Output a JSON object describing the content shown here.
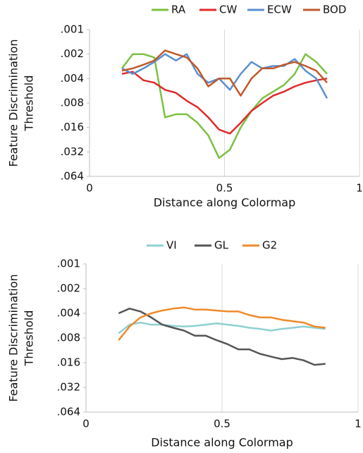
{
  "chart_data": [
    {
      "type": "line",
      "log_scale": true,
      "y_inverted": true,
      "grid": "x",
      "ylabel": [
        "Feature Discrimination",
        "Threshold"
      ],
      "xlabel": "Distance along Colormap",
      "xlim": [
        0,
        1
      ],
      "xticks": [
        0,
        0.5,
        1
      ],
      "ylim": [
        0.001,
        0.064
      ],
      "yticks": [
        {
          "value": 0.001,
          "label": ".001"
        },
        {
          "value": 0.002,
          "label": ".002"
        },
        {
          "value": 0.004,
          "label": ".004"
        },
        {
          "value": 0.008,
          "label": ".008"
        },
        {
          "value": 0.016,
          "label": ".016"
        },
        {
          "value": 0.032,
          "label": ".032"
        },
        {
          "value": 0.064,
          "label": ".064"
        }
      ],
      "x": [
        0.12,
        0.16,
        0.2,
        0.24,
        0.28,
        0.32,
        0.36,
        0.4,
        0.44,
        0.48,
        0.52,
        0.56,
        0.6,
        0.64,
        0.68,
        0.72,
        0.76,
        0.8,
        0.84,
        0.88
      ],
      "series": [
        {
          "name": "RA",
          "color": "#7cc142",
          "values": [
            0.003,
            0.002,
            0.002,
            0.0022,
            0.012,
            0.011,
            0.011,
            0.014,
            0.02,
            0.038,
            0.03,
            0.016,
            0.01,
            0.007,
            0.0058,
            0.0048,
            0.0035,
            0.002,
            0.0025,
            0.0035
          ]
        },
        {
          "name": "CW",
          "color": "#e02a2a",
          "values": [
            0.0035,
            0.0033,
            0.0042,
            0.0045,
            0.0055,
            0.006,
            0.0075,
            0.009,
            0.012,
            0.017,
            0.019,
            0.014,
            0.01,
            0.008,
            0.0065,
            0.0058,
            0.005,
            0.0045,
            0.0042,
            0.004
          ]
        },
        {
          "name": "ECW",
          "color": "#5b8fcf",
          "values": [
            0.003,
            0.0035,
            0.003,
            0.0025,
            0.002,
            0.0024,
            0.002,
            0.0035,
            0.0045,
            0.004,
            0.0055,
            0.0035,
            0.0025,
            0.003,
            0.0028,
            0.0028,
            0.0023,
            0.0032,
            0.004,
            0.007
          ]
        },
        {
          "name": "BOD",
          "color": "#c0592b",
          "values": [
            0.0032,
            0.003,
            0.0027,
            0.0024,
            0.0018,
            0.002,
            0.0022,
            0.003,
            0.005,
            0.004,
            0.004,
            0.0065,
            0.004,
            0.003,
            0.003,
            0.0027,
            0.0025,
            0.0028,
            0.0032,
            0.0045
          ]
        }
      ]
    },
    {
      "type": "line",
      "log_scale": true,
      "y_inverted": true,
      "grid": "x",
      "ylabel": [
        "Feature Discrimination",
        "Threshold"
      ],
      "xlabel": "Distance along Colormap",
      "xlim": [
        0,
        1
      ],
      "xticks": [
        0,
        0.5,
        1
      ],
      "ylim": [
        0.001,
        0.064
      ],
      "yticks": [
        {
          "value": 0.001,
          "label": ".001"
        },
        {
          "value": 0.002,
          "label": ".002"
        },
        {
          "value": 0.004,
          "label": ".004"
        },
        {
          "value": 0.008,
          "label": ".008"
        },
        {
          "value": 0.016,
          "label": ".016"
        },
        {
          "value": 0.032,
          "label": ".032"
        },
        {
          "value": 0.064,
          "label": ".064"
        }
      ],
      "x": [
        0.12,
        0.16,
        0.2,
        0.24,
        0.28,
        0.32,
        0.36,
        0.4,
        0.44,
        0.48,
        0.52,
        0.56,
        0.6,
        0.64,
        0.68,
        0.72,
        0.76,
        0.8,
        0.84,
        0.88
      ],
      "series": [
        {
          "name": "VI",
          "color": "#8fd0d0",
          "values": [
            0.007,
            0.0055,
            0.0052,
            0.0055,
            0.0055,
            0.0057,
            0.0058,
            0.0057,
            0.0055,
            0.0053,
            0.0055,
            0.0057,
            0.006,
            0.0062,
            0.0065,
            0.0062,
            0.006,
            0.0058,
            0.006,
            0.0062
          ]
        },
        {
          "name": "GL",
          "color": "#555555",
          "values": [
            0.004,
            0.0035,
            0.0038,
            0.0045,
            0.0055,
            0.006,
            0.0065,
            0.0075,
            0.0075,
            0.0085,
            0.0095,
            0.011,
            0.011,
            0.0125,
            0.0135,
            0.0145,
            0.014,
            0.015,
            0.017,
            0.0165
          ]
        },
        {
          "name": "G2",
          "color": "#f08a2c",
          "values": [
            0.0085,
            0.0058,
            0.0045,
            0.004,
            0.0037,
            0.0035,
            0.0034,
            0.0036,
            0.0036,
            0.0037,
            0.0038,
            0.0038,
            0.0042,
            0.0045,
            0.0045,
            0.0048,
            0.005,
            0.0052,
            0.0058,
            0.006
          ]
        }
      ]
    }
  ]
}
